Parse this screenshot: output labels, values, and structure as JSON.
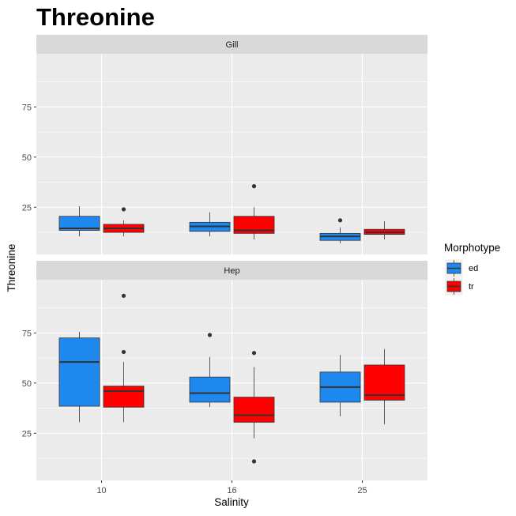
{
  "chart_data": {
    "type": "boxplot",
    "title": "Threonine",
    "xlabel": "Salinity",
    "ylabel": "Threonine",
    "categories": [
      "10",
      "16",
      "25"
    ],
    "yticks": [
      25,
      50,
      75
    ],
    "ylim": [
      0,
      100
    ],
    "legend": {
      "title": "Morphotype",
      "position": "right",
      "entries": [
        {
          "name": "ed",
          "color": "#1E88EE"
        },
        {
          "name": "tr",
          "color": "#FF0000"
        }
      ]
    },
    "panels": [
      {
        "label": "Gill",
        "groups": [
          {
            "x": "10",
            "series": "ed",
            "min": 10.5,
            "q1": 13.5,
            "median": 14.5,
            "q3": 20.5,
            "max": 25.5,
            "outliers": []
          },
          {
            "x": "10",
            "series": "tr",
            "min": 10.5,
            "q1": 12.5,
            "median": 14.5,
            "q3": 16.5,
            "max": 18.5,
            "outliers": [
              24
            ]
          },
          {
            "x": "16",
            "series": "ed",
            "min": 10.5,
            "q1": 13,
            "median": 15.5,
            "q3": 17.5,
            "max": 22.5,
            "outliers": []
          },
          {
            "x": "16",
            "series": "tr",
            "min": 9,
            "q1": 12,
            "median": 13.5,
            "q3": 20.5,
            "max": 25,
            "outliers": [
              35.5
            ]
          },
          {
            "x": "25",
            "series": "ed",
            "min": 7,
            "q1": 8.5,
            "median": 10.5,
            "q3": 12,
            "max": 15,
            "outliers": [
              18.5
            ]
          },
          {
            "x": "25",
            "series": "tr",
            "min": 9,
            "q1": 11.5,
            "median": 12.5,
            "q3": 14,
            "max": 18,
            "outliers": []
          }
        ]
      },
      {
        "label": "Hep",
        "groups": [
          {
            "x": "10",
            "series": "ed",
            "min": 30.5,
            "q1": 38.5,
            "median": 60.5,
            "q3": 72.5,
            "max": 75.5,
            "outliers": []
          },
          {
            "x": "10",
            "series": "tr",
            "min": 30.5,
            "q1": 38,
            "median": 46,
            "q3": 48.5,
            "max": 60.5,
            "outliers": [
              65.5,
              93.5
            ]
          },
          {
            "x": "16",
            "series": "ed",
            "min": 38,
            "q1": 40.5,
            "median": 45,
            "q3": 53,
            "max": 63,
            "outliers": [
              74
            ]
          },
          {
            "x": "16",
            "series": "tr",
            "min": 22.5,
            "q1": 30.5,
            "median": 34,
            "q3": 43,
            "max": 58,
            "outliers": [
              65,
              11
            ]
          },
          {
            "x": "25",
            "series": "ed",
            "min": 33.5,
            "q1": 40.5,
            "median": 48,
            "q3": 55.5,
            "max": 64,
            "outliers": []
          },
          {
            "x": "25",
            "series": "tr",
            "min": 29.5,
            "q1": 41.5,
            "median": 44,
            "q3": 59,
            "max": 67,
            "outliers": []
          }
        ]
      }
    ]
  }
}
